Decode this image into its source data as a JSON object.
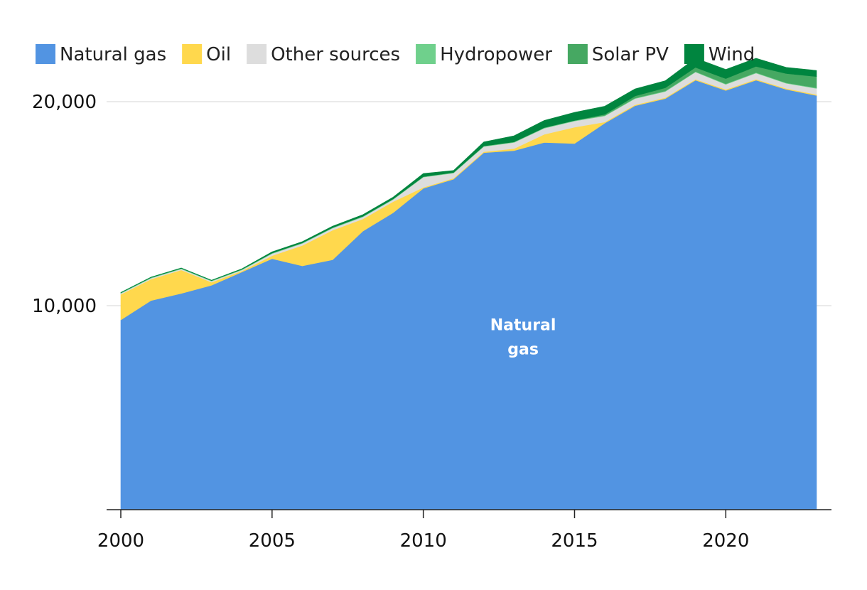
{
  "chart_data": {
    "type": "area",
    "stacked": true,
    "title": "",
    "xlabel": "",
    "ylabel": "",
    "xlim": [
      2000,
      2023
    ],
    "ylim": [
      0,
      21500
    ],
    "grid": "horizontal",
    "legend_position": "top-left",
    "x": [
      2000,
      2001,
      2002,
      2003,
      2004,
      2005,
      2006,
      2007,
      2008,
      2009,
      2010,
      2011,
      2012,
      2013,
      2014,
      2015,
      2016,
      2017,
      2018,
      2019,
      2020,
      2021,
      2022,
      2023
    ],
    "x_ticks": [
      {
        "value": 2000,
        "label": "2000"
      },
      {
        "value": 2005,
        "label": "2005"
      },
      {
        "value": 2010,
        "label": "2010"
      },
      {
        "value": 2015,
        "label": "2015"
      },
      {
        "value": 2020,
        "label": "2020"
      }
    ],
    "y_ticks": [
      {
        "value": 10000,
        "label": "10,000"
      },
      {
        "value": 20000,
        "label": "20,000"
      }
    ],
    "series": [
      {
        "name": "Natural gas",
        "color": "#5294e2",
        "values": [
          9300,
          10250,
          10600,
          11000,
          11650,
          12300,
          11950,
          12250,
          13650,
          14550,
          15750,
          16200,
          17500,
          17600,
          18000,
          17950,
          18950,
          19800,
          20150,
          21050,
          20550,
          21050,
          20600,
          20300
        ]
      },
      {
        "name": "Oil",
        "color": "#ffd84d",
        "values": [
          1250,
          1050,
          1150,
          150,
          50,
          150,
          1000,
          1450,
          600,
          550,
          50,
          50,
          50,
          100,
          400,
          800,
          50,
          50,
          50,
          50,
          50,
          50,
          50,
          50
        ]
      },
      {
        "name": "Other sources",
        "color": "#dddddd",
        "values": [
          50,
          50,
          50,
          50,
          50,
          100,
          100,
          100,
          100,
          100,
          500,
          250,
          250,
          300,
          300,
          300,
          300,
          300,
          300,
          350,
          250,
          300,
          250,
          300
        ]
      },
      {
        "name": "Hydropower",
        "color": "#6fd08c",
        "values": [
          30,
          30,
          30,
          30,
          30,
          30,
          30,
          30,
          30,
          30,
          30,
          30,
          30,
          30,
          30,
          30,
          30,
          30,
          30,
          30,
          30,
          30,
          30,
          30
        ]
      },
      {
        "name": "Solar PV",
        "color": "#46a862",
        "values": [
          0,
          0,
          0,
          0,
          0,
          0,
          0,
          0,
          0,
          0,
          0,
          0,
          0,
          0,
          0,
          0,
          50,
          100,
          150,
          200,
          250,
          300,
          450,
          550
        ]
      },
      {
        "name": "Wind",
        "color": "#00853f",
        "values": [
          20,
          20,
          20,
          20,
          30,
          60,
          60,
          70,
          80,
          90,
          150,
          100,
          200,
          300,
          350,
          400,
          400,
          350,
          350,
          450,
          450,
          400,
          300,
          300
        ]
      }
    ],
    "annotations": [
      {
        "series": "Natural gas",
        "lines": [
          "Natural",
          "gas"
        ],
        "x": 2013.3,
        "y": 8800
      }
    ]
  }
}
